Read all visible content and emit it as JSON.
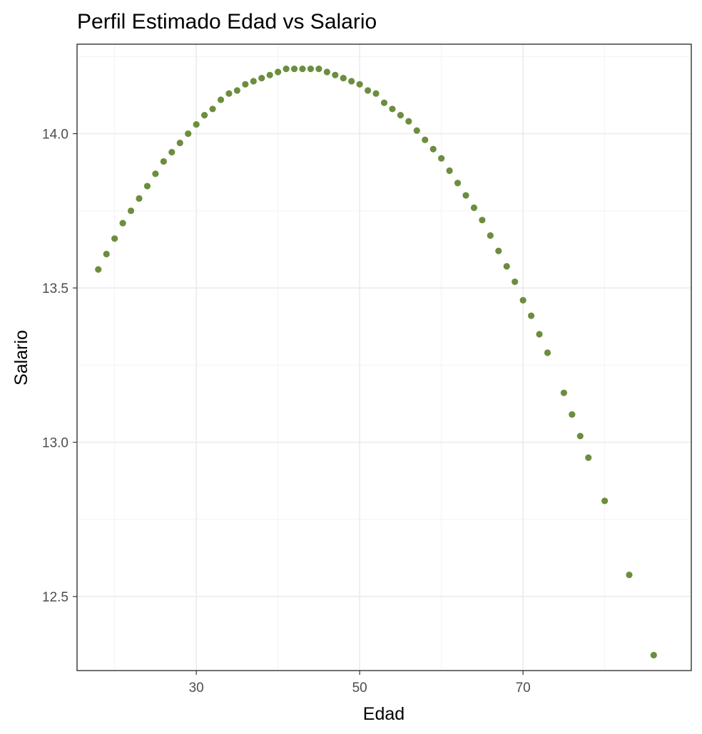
{
  "chart_data": {
    "type": "scatter",
    "title": "Perfil Estimado Edad vs Salario",
    "xlabel": "Edad",
    "ylabel": "Salario",
    "xlim": [
      15.4,
      90.6
    ],
    "ylim": [
      12.26,
      14.29
    ],
    "x_ticks": [
      30,
      50,
      70
    ],
    "x_tick_labels": [
      "30",
      "50",
      "70"
    ],
    "y_ticks": [
      12.5,
      13.0,
      13.5,
      14.0
    ],
    "y_tick_labels": [
      "12.5",
      "13.0",
      "13.5",
      "14.0"
    ],
    "grid": true,
    "legend": "none",
    "point_color": "#6b8e3e",
    "points": [
      {
        "x": 18,
        "y": 13.56
      },
      {
        "x": 19,
        "y": 13.61
      },
      {
        "x": 20,
        "y": 13.66
      },
      {
        "x": 21,
        "y": 13.71
      },
      {
        "x": 22,
        "y": 13.75
      },
      {
        "x": 23,
        "y": 13.79
      },
      {
        "x": 24,
        "y": 13.83
      },
      {
        "x": 25,
        "y": 13.87
      },
      {
        "x": 26,
        "y": 13.91
      },
      {
        "x": 27,
        "y": 13.94
      },
      {
        "x": 28,
        "y": 13.97
      },
      {
        "x": 29,
        "y": 14.0
      },
      {
        "x": 30,
        "y": 14.03
      },
      {
        "x": 31,
        "y": 14.06
      },
      {
        "x": 32,
        "y": 14.08
      },
      {
        "x": 33,
        "y": 14.11
      },
      {
        "x": 34,
        "y": 14.13
      },
      {
        "x": 35,
        "y": 14.14
      },
      {
        "x": 36,
        "y": 14.16
      },
      {
        "x": 37,
        "y": 14.17
      },
      {
        "x": 38,
        "y": 14.18
      },
      {
        "x": 39,
        "y": 14.19
      },
      {
        "x": 40,
        "y": 14.2
      },
      {
        "x": 41,
        "y": 14.21
      },
      {
        "x": 42,
        "y": 14.21
      },
      {
        "x": 43,
        "y": 14.21
      },
      {
        "x": 44,
        "y": 14.21
      },
      {
        "x": 45,
        "y": 14.21
      },
      {
        "x": 46,
        "y": 14.2
      },
      {
        "x": 47,
        "y": 14.19
      },
      {
        "x": 48,
        "y": 14.18
      },
      {
        "x": 49,
        "y": 14.17
      },
      {
        "x": 50,
        "y": 14.16
      },
      {
        "x": 51,
        "y": 14.14
      },
      {
        "x": 52,
        "y": 14.13
      },
      {
        "x": 53,
        "y": 14.1
      },
      {
        "x": 54,
        "y": 14.08
      },
      {
        "x": 55,
        "y": 14.06
      },
      {
        "x": 56,
        "y": 14.04
      },
      {
        "x": 57,
        "y": 14.01
      },
      {
        "x": 58,
        "y": 13.98
      },
      {
        "x": 59,
        "y": 13.95
      },
      {
        "x": 60,
        "y": 13.92
      },
      {
        "x": 61,
        "y": 13.88
      },
      {
        "x": 62,
        "y": 13.84
      },
      {
        "x": 63,
        "y": 13.8
      },
      {
        "x": 64,
        "y": 13.76
      },
      {
        "x": 65,
        "y": 13.72
      },
      {
        "x": 66,
        "y": 13.67
      },
      {
        "x": 67,
        "y": 13.62
      },
      {
        "x": 68,
        "y": 13.57
      },
      {
        "x": 69,
        "y": 13.52
      },
      {
        "x": 70,
        "y": 13.46
      },
      {
        "x": 71,
        "y": 13.41
      },
      {
        "x": 72,
        "y": 13.35
      },
      {
        "x": 73,
        "y": 13.29
      },
      {
        "x": 75,
        "y": 13.16
      },
      {
        "x": 76,
        "y": 13.09
      },
      {
        "x": 77,
        "y": 13.02
      },
      {
        "x": 78,
        "y": 12.95
      },
      {
        "x": 80,
        "y": 12.81
      },
      {
        "x": 83,
        "y": 12.57
      },
      {
        "x": 86,
        "y": 12.31
      }
    ]
  }
}
